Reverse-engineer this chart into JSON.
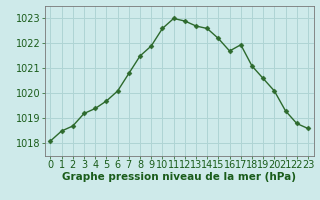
{
  "x": [
    0,
    1,
    2,
    3,
    4,
    5,
    6,
    7,
    8,
    9,
    10,
    11,
    12,
    13,
    14,
    15,
    16,
    17,
    18,
    19,
    20,
    21,
    22,
    23
  ],
  "y": [
    1018.1,
    1018.5,
    1018.7,
    1019.2,
    1019.4,
    1019.7,
    1020.1,
    1020.8,
    1021.5,
    1021.9,
    1022.6,
    1023.0,
    1022.9,
    1022.7,
    1022.6,
    1022.2,
    1021.7,
    1021.95,
    1021.1,
    1020.6,
    1020.1,
    1019.3,
    1018.8,
    1018.6
  ],
  "line_color": "#2d6a2d",
  "marker": "D",
  "marker_size": 2.5,
  "bg_color": "#ceeaea",
  "grid_color": "#afd4d4",
  "xlabel": "Graphe pression niveau de la mer (hPa)",
  "xlabel_color": "#1a5c1a",
  "tick_color": "#1a5c1a",
  "ylim": [
    1017.5,
    1023.5
  ],
  "yticks": [
    1018,
    1019,
    1020,
    1021,
    1022,
    1023
  ],
  "xticks": [
    0,
    1,
    2,
    3,
    4,
    5,
    6,
    7,
    8,
    9,
    10,
    11,
    12,
    13,
    14,
    15,
    16,
    17,
    18,
    19,
    20,
    21,
    22,
    23
  ],
  "line_width": 1.0,
  "font_size": 7.0,
  "label_font_size": 7.5
}
